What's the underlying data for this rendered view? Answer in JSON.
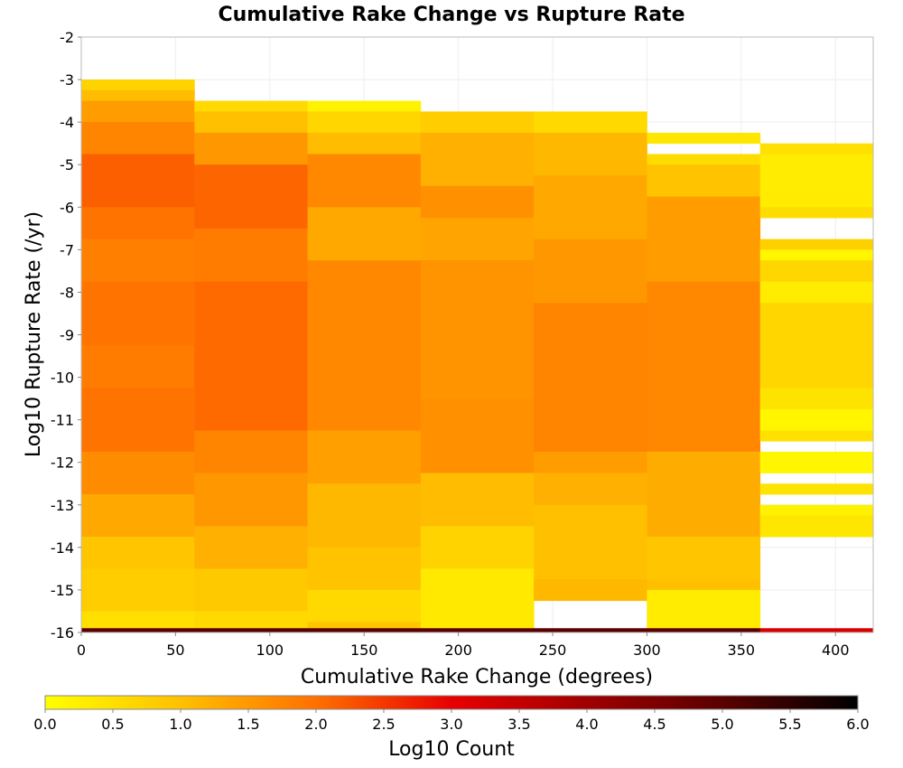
{
  "chart_data": {
    "type": "heatmap",
    "title": "Cumulative Rake Change vs Rupture Rate",
    "xlabel": "Cumulative Rake Change (degrees)",
    "ylabel": "Log10 Rupture Rate (/yr)",
    "xlim": [
      0,
      420
    ],
    "ylim": [
      -16,
      -2
    ],
    "xticks": [
      "0",
      "50",
      "100",
      "150",
      "200",
      "250",
      "300",
      "350",
      "400"
    ],
    "yticks": [
      "-2",
      "-3",
      "-4",
      "-5",
      "-6",
      "-7",
      "-8",
      "-9",
      "-10",
      "-11",
      "-12",
      "-13",
      "-14",
      "-15",
      "-16"
    ],
    "grid": true,
    "x_bin_width": 60,
    "y_bin_height": 0.25,
    "colorscale": {
      "label": "Log10 Count",
      "min": 0.0,
      "max": 6.0,
      "ticks": [
        "0.0",
        "0.5",
        "1.0",
        "1.5",
        "2.0",
        "2.5",
        "3.0",
        "3.5",
        "4.0",
        "4.5",
        "5.0",
        "5.5",
        "6.0"
      ],
      "stops": [
        {
          "value": 0.0,
          "color": "#ffff00"
        },
        {
          "value": 1.0,
          "color": "#ffc000"
        },
        {
          "value": 2.0,
          "color": "#ff7000"
        },
        {
          "value": 3.0,
          "color": "#e80000"
        },
        {
          "value": 4.0,
          "color": "#a00000"
        },
        {
          "value": 5.0,
          "color": "#5a0000"
        },
        {
          "value": 6.0,
          "color": "#000000"
        }
      ]
    },
    "columns": [
      {
        "x": 30,
        "bins": [
          {
            "y0": -3.25,
            "y1": -3.0,
            "v": 0.7
          },
          {
            "y0": -3.5,
            "y1": -3.25,
            "v": 1.05
          },
          {
            "y0": -4.0,
            "y1": -3.5,
            "v": 1.45
          },
          {
            "y0": -4.75,
            "y1": -4.0,
            "v": 1.75
          },
          {
            "y0": -6.0,
            "y1": -4.75,
            "v": 2.15
          },
          {
            "y0": -6.75,
            "y1": -6.0,
            "v": 1.95
          },
          {
            "y0": -7.75,
            "y1": -6.75,
            "v": 1.8
          },
          {
            "y0": -9.25,
            "y1": -7.75,
            "v": 1.95
          },
          {
            "y0": -10.25,
            "y1": -9.25,
            "v": 1.85
          },
          {
            "y0": -11.75,
            "y1": -10.25,
            "v": 1.95
          },
          {
            "y0": -12.75,
            "y1": -11.75,
            "v": 1.65
          },
          {
            "y0": -13.75,
            "y1": -12.75,
            "v": 1.3
          },
          {
            "y0": -14.5,
            "y1": -13.75,
            "v": 0.9
          },
          {
            "y0": -15.5,
            "y1": -14.5,
            "v": 0.8
          },
          {
            "y0": -15.9,
            "y1": -15.5,
            "v": 0.5
          },
          {
            "y0": -16.0,
            "y1": -15.9,
            "v": 5.0
          }
        ]
      },
      {
        "x": 90,
        "bins": [
          {
            "y0": -3.75,
            "y1": -3.5,
            "v": 0.6
          },
          {
            "y0": -4.25,
            "y1": -3.75,
            "v": 1.0
          },
          {
            "y0": -5.0,
            "y1": -4.25,
            "v": 1.5
          },
          {
            "y0": -6.5,
            "y1": -5.0,
            "v": 2.1
          },
          {
            "y0": -7.75,
            "y1": -6.5,
            "v": 1.85
          },
          {
            "y0": -11.25,
            "y1": -7.75,
            "v": 2.05
          },
          {
            "y0": -12.25,
            "y1": -11.25,
            "v": 1.75
          },
          {
            "y0": -13.5,
            "y1": -12.25,
            "v": 1.5
          },
          {
            "y0": -14.5,
            "y1": -13.5,
            "v": 1.2
          },
          {
            "y0": -15.5,
            "y1": -14.5,
            "v": 0.85
          },
          {
            "y0": -15.9,
            "y1": -15.5,
            "v": 0.6
          },
          {
            "y0": -16.0,
            "y1": -15.9,
            "v": 5.0
          }
        ]
      },
      {
        "x": 150,
        "bins": [
          {
            "y0": -3.75,
            "y1": -3.5,
            "v": 0.2
          },
          {
            "y0": -4.25,
            "y1": -3.75,
            "v": 0.65
          },
          {
            "y0": -4.75,
            "y1": -4.25,
            "v": 1.05
          },
          {
            "y0": -6.0,
            "y1": -4.75,
            "v": 1.7
          },
          {
            "y0": -7.25,
            "y1": -6.0,
            "v": 1.3
          },
          {
            "y0": -11.25,
            "y1": -7.25,
            "v": 1.7
          },
          {
            "y0": -12.5,
            "y1": -11.25,
            "v": 1.4
          },
          {
            "y0": -14.0,
            "y1": -12.5,
            "v": 1.1
          },
          {
            "y0": -15.0,
            "y1": -14.0,
            "v": 0.95
          },
          {
            "y0": -15.75,
            "y1": -15.0,
            "v": 0.6
          },
          {
            "y0": -15.9,
            "y1": -15.75,
            "v": 0.9
          },
          {
            "y0": -16.0,
            "y1": -15.9,
            "v": 5.0
          }
        ]
      },
      {
        "x": 210,
        "bins": [
          {
            "y0": -4.25,
            "y1": -3.75,
            "v": 0.8
          },
          {
            "y0": -5.5,
            "y1": -4.25,
            "v": 1.2
          },
          {
            "y0": -6.25,
            "y1": -5.5,
            "v": 1.6
          },
          {
            "y0": -7.25,
            "y1": -6.25,
            "v": 1.35
          },
          {
            "y0": -10.5,
            "y1": -7.25,
            "v": 1.55
          },
          {
            "y0": -12.25,
            "y1": -10.5,
            "v": 1.6
          },
          {
            "y0": -13.5,
            "y1": -12.25,
            "v": 1.05
          },
          {
            "y0": -14.5,
            "y1": -13.5,
            "v": 0.7
          },
          {
            "y0": -15.9,
            "y1": -14.5,
            "v": 0.35
          },
          {
            "y0": -16.0,
            "y1": -15.9,
            "v": 5.0
          }
        ]
      },
      {
        "x": 270,
        "bins": [
          {
            "y0": -4.25,
            "y1": -3.75,
            "v": 0.6
          },
          {
            "y0": -5.25,
            "y1": -4.25,
            "v": 1.1
          },
          {
            "y0": -6.75,
            "y1": -5.25,
            "v": 1.3
          },
          {
            "y0": -8.25,
            "y1": -6.75,
            "v": 1.5
          },
          {
            "y0": -11.75,
            "y1": -8.25,
            "v": 1.75
          },
          {
            "y0": -12.25,
            "y1": -11.75,
            "v": 1.45
          },
          {
            "y0": -13.0,
            "y1": -12.25,
            "v": 1.2
          },
          {
            "y0": -14.75,
            "y1": -13.0,
            "v": 1.0
          },
          {
            "y0": -15.25,
            "y1": -14.75,
            "v": 1.1
          },
          {
            "y0": -16.0,
            "y1": -15.9,
            "v": 5.0
          }
        ]
      },
      {
        "x": 330,
        "bins": [
          {
            "y0": -4.5,
            "y1": -4.25,
            "v": 0.4
          },
          {
            "y0": -5.0,
            "y1": -4.75,
            "v": 0.55
          },
          {
            "y0": -5.75,
            "y1": -5.0,
            "v": 0.95
          },
          {
            "y0": -7.75,
            "y1": -5.75,
            "v": 1.45
          },
          {
            "y0": -11.75,
            "y1": -7.75,
            "v": 1.7
          },
          {
            "y0": -13.75,
            "y1": -11.75,
            "v": 1.25
          },
          {
            "y0": -14.75,
            "y1": -13.75,
            "v": 0.9
          },
          {
            "y0": -15.0,
            "y1": -14.75,
            "v": 1.0
          },
          {
            "y0": -15.9,
            "y1": -15.0,
            "v": 0.3
          },
          {
            "y0": -16.0,
            "y1": -15.9,
            "v": 5.0
          }
        ]
      },
      {
        "x": 390,
        "bins": [
          {
            "y0": -4.75,
            "y1": -4.5,
            "v": 0.5
          },
          {
            "y0": -6.0,
            "y1": -4.75,
            "v": 0.3
          },
          {
            "y0": -6.25,
            "y1": -6.0,
            "v": 0.55
          },
          {
            "y0": -7.0,
            "y1": -6.75,
            "v": 0.75
          },
          {
            "y0": -7.25,
            "y1": -7.0,
            "v": 0.15
          },
          {
            "y0": -7.75,
            "y1": -7.25,
            "v": 0.65
          },
          {
            "y0": -8.25,
            "y1": -7.75,
            "v": 0.3
          },
          {
            "y0": -10.25,
            "y1": -8.25,
            "v": 0.65
          },
          {
            "y0": -10.75,
            "y1": -10.25,
            "v": 0.45
          },
          {
            "y0": -11.25,
            "y1": -10.75,
            "v": 0.15
          },
          {
            "y0": -11.5,
            "y1": -11.25,
            "v": 0.5
          },
          {
            "y0": -12.25,
            "y1": -11.75,
            "v": 0.15
          },
          {
            "y0": -12.75,
            "y1": -12.5,
            "v": 0.45
          },
          {
            "y0": -13.25,
            "y1": -13.0,
            "v": 0.2
          },
          {
            "y0": -13.75,
            "y1": -13.25,
            "v": 0.4
          },
          {
            "y0": -16.0,
            "y1": -15.9,
            "v": 3.2
          }
        ]
      }
    ]
  }
}
